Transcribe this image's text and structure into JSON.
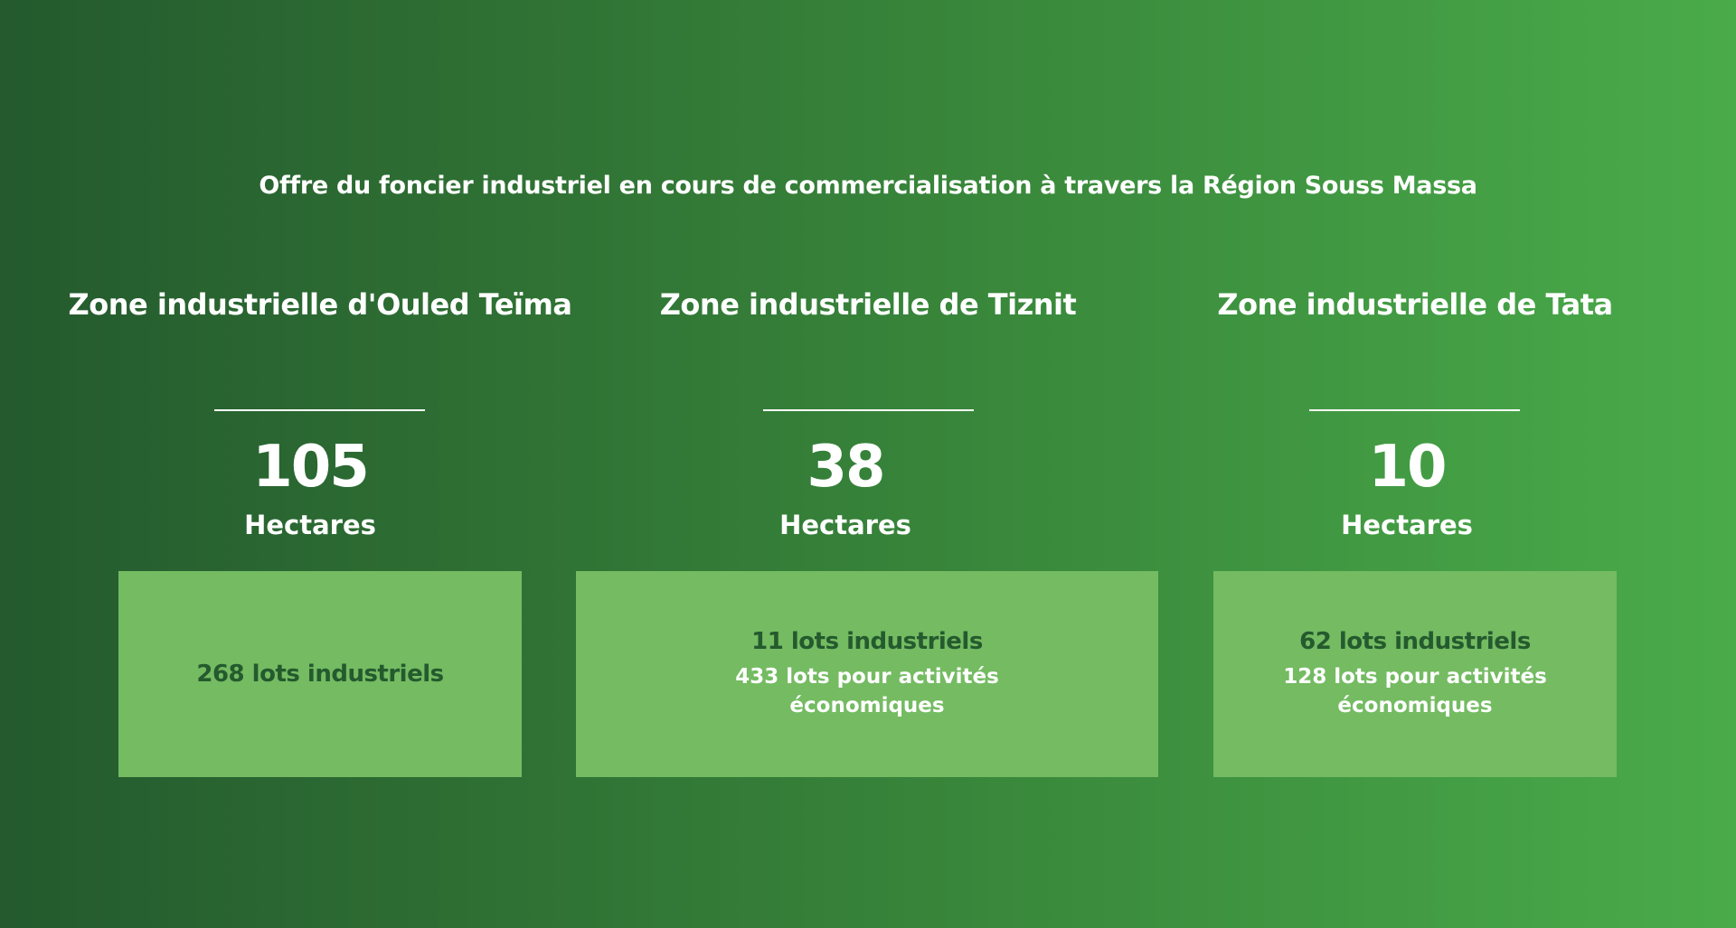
{
  "title": "Offre du foncier industriel en cours de commercialisation à travers la Région Souss Massa",
  "zones": [
    {
      "name": "Zone industrielle d'Ouled Teïma",
      "value": "105",
      "unit": "Hectares",
      "lots": "268 lots industriels",
      "eco": ""
    },
    {
      "name": "Zone industrielle de Tiznit",
      "value": "38",
      "unit": "Hectares",
      "lots": "11 lots industriels",
      "eco": "433 lots pour activités économiques"
    },
    {
      "name": "Zone industrielle de Tata",
      "value": "10",
      "unit": "Hectares",
      "lots": "62 lots industriels",
      "eco": "128 lots pour activités économiques"
    }
  ],
  "colors": {
    "bg_start": "#245a2e",
    "bg_end": "#4aab4a",
    "box": "#74bb62",
    "dark_text": "#245a2e"
  }
}
